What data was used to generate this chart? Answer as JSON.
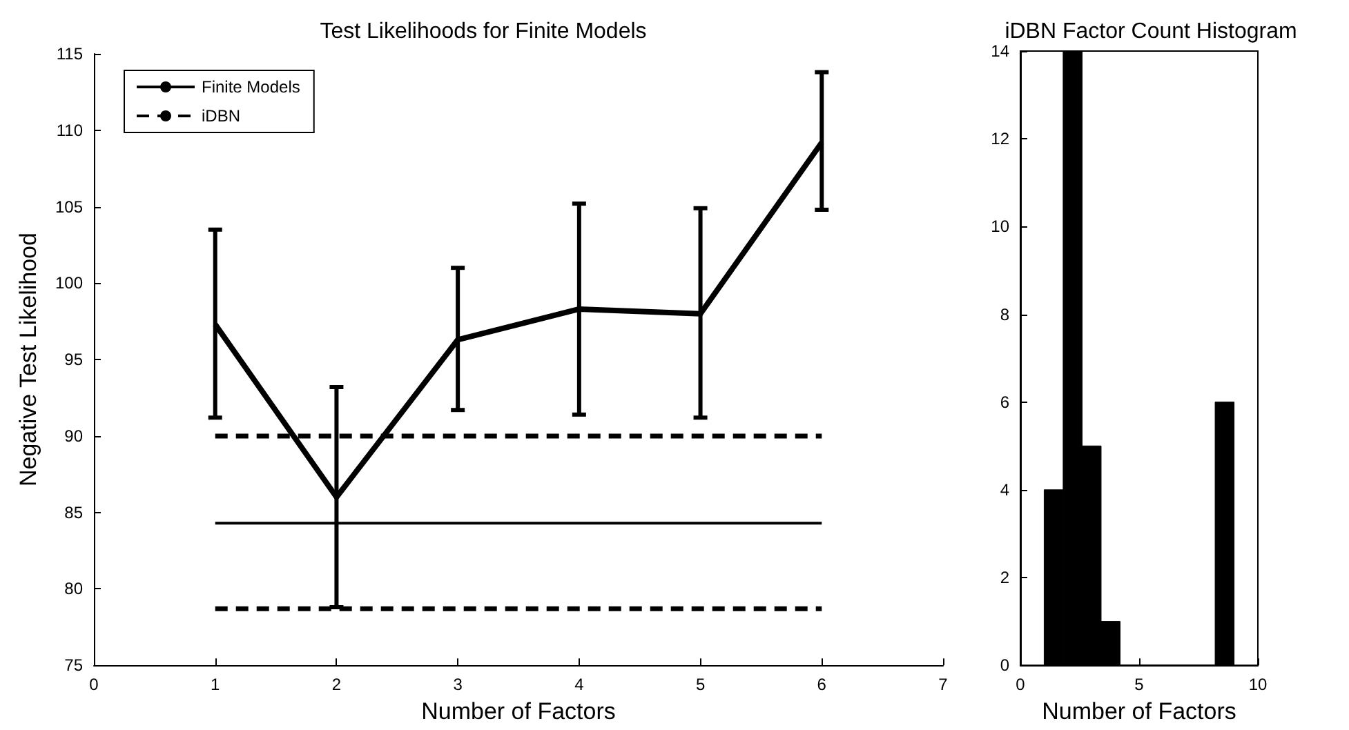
{
  "chart_data": [
    {
      "type": "line",
      "title": "Test Likelihoods for Finite Models",
      "xlabel": "Number of Factors",
      "ylabel": "Negative Test Likelihood",
      "xlim": [
        0,
        7
      ],
      "xticks": [
        0,
        1,
        2,
        3,
        4,
        5,
        6,
        7
      ],
      "ylim": [
        75,
        115
      ],
      "yticks": [
        75,
        80,
        85,
        90,
        95,
        100,
        105,
        110,
        115
      ],
      "legend": "top left",
      "series": [
        {
          "name": "Finite Models",
          "color": "#000000",
          "x": [
            1,
            2,
            3,
            4,
            5,
            6
          ],
          "values": [
            97.3,
            86,
            96.3,
            98.3,
            98,
            109.2
          ],
          "errors": [
            [
              91.2,
              103.5
            ],
            [
              78.8,
              93.2
            ],
            [
              91.7,
              101
            ],
            [
              91.4,
              105.2
            ],
            [
              91.2,
              104.9
            ],
            [
              104.8,
              113.8
            ]
          ]
        },
        {
          "name": "iDBN",
          "color": "#000000",
          "line_style": "dashed",
          "x": [
            1,
            6
          ],
          "values": [
            90,
            90
          ]
        },
        {
          "color": "#000000",
          "x": [
            1,
            6
          ],
          "values": [
            84.3,
            84.3
          ]
        },
        {
          "color": "#000000",
          "line_style": "dashed",
          "x": [
            1,
            6
          ],
          "values": [
            78.7,
            78.7
          ]
        }
      ]
    },
    {
      "type": "histogram",
      "title": "iDBN Factor Count Histogram",
      "xlabel": "Number of Factors",
      "color": "#000000",
      "bins": [
        1,
        1.8,
        2.6,
        3.4,
        4.2,
        5,
        5.8,
        6.6,
        7.4,
        8.2,
        9
      ],
      "values": [
        4,
        14,
        5,
        1,
        0,
        0,
        0,
        0,
        0,
        6
      ],
      "xlim": [
        0,
        10
      ],
      "xticks": [
        0,
        5,
        10
      ],
      "ylim": [
        0,
        14
      ],
      "yticks": [
        0,
        2,
        4,
        6,
        8,
        10,
        12,
        14
      ]
    }
  ]
}
